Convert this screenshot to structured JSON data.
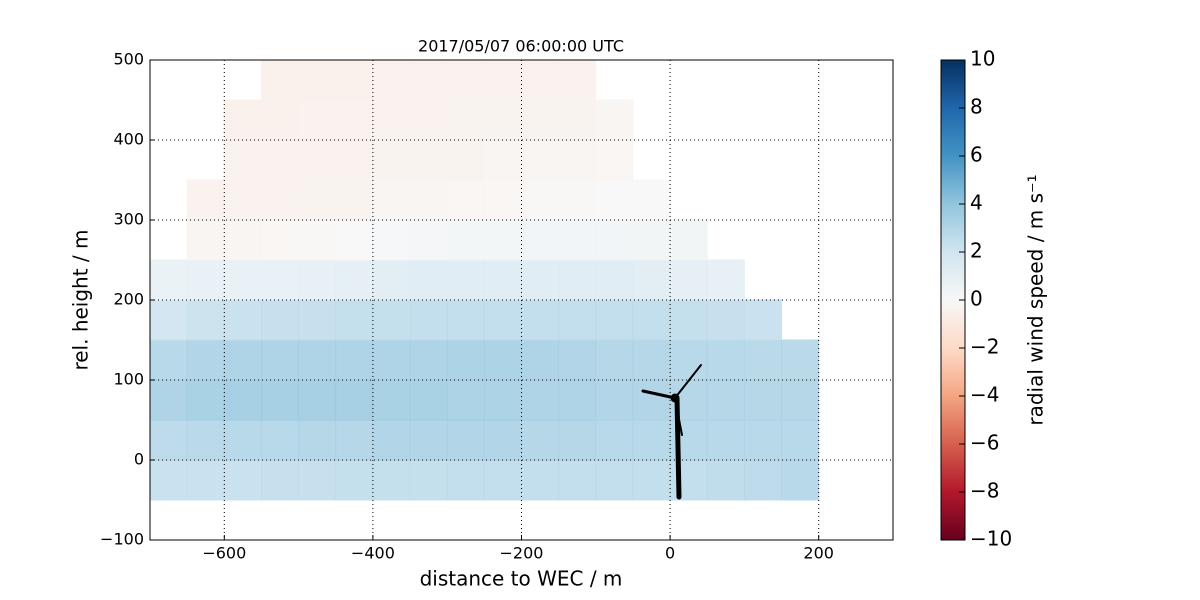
{
  "chart_data": {
    "type": "heatmap",
    "title": "2017/05/07 06:00:00 UTC",
    "xlabel": "distance to WEC / m",
    "ylabel": "rel. height / m",
    "xlim": [
      -700,
      300
    ],
    "ylim": [
      -100,
      500
    ],
    "xticks": [
      {
        "value": -600,
        "label": "−600"
      },
      {
        "value": -400,
        "label": "−400"
      },
      {
        "value": -200,
        "label": "−200"
      },
      0,
      200
    ],
    "yticks": [
      {
        "value": -100,
        "label": "−100"
      },
      0,
      100,
      200,
      300,
      400,
      500
    ],
    "grid": true,
    "colormap": "RdBu",
    "colorbar": {
      "label": "radial wind speed / m s⁻¹",
      "lim": [
        -10,
        10
      ],
      "ticks": [
        {
          "value": -10,
          "label": "−10"
        },
        {
          "value": -8,
          "label": "−8"
        },
        {
          "value": -6,
          "label": "−6"
        },
        {
          "value": -4,
          "label": "−4"
        },
        {
          "value": -2,
          "label": "−2"
        },
        0,
        2,
        4,
        6,
        8,
        10
      ]
    },
    "x": [
      -675,
      -625,
      -575,
      -525,
      -475,
      -425,
      -375,
      -325,
      -275,
      -225,
      -175,
      -125,
      -75,
      -25,
      25,
      75,
      125,
      175,
      225
    ],
    "y": [
      -25,
      25,
      75,
      125,
      175,
      225,
      275,
      325,
      375,
      425,
      475
    ],
    "values": [
      [
        2.5,
        2.5,
        2.5,
        2.6,
        2.6,
        2.7,
        2.7,
        2.7,
        2.8,
        2.8,
        2.8,
        2.8,
        2.8,
        2.8,
        2.8,
        2.9,
        3,
        3.2,
        null
      ],
      [
        3,
        3.1,
        3.2,
        3.2,
        3.3,
        3.3,
        3.4,
        3.4,
        3.4,
        3.4,
        3.3,
        3.3,
        3.2,
        3.2,
        3.2,
        3.2,
        3.2,
        3.2,
        null
      ],
      [
        3.5,
        3.7,
        3.8,
        3.8,
        3.8,
        3.8,
        3.7,
        3.7,
        3.6,
        3.6,
        3.5,
        3.5,
        3.4,
        3.4,
        3.3,
        3.3,
        3.3,
        3.3,
        null
      ],
      [
        3.2,
        3.4,
        3.5,
        3.5,
        3.5,
        3.5,
        3.5,
        3.5,
        3.6,
        3.6,
        3.5,
        3.4,
        3.3,
        3.3,
        3.2,
        3.2,
        3.1,
        3.1,
        null
      ],
      [
        2.2,
        2.4,
        2.5,
        2.6,
        2.6,
        2.7,
        2.7,
        2.8,
        2.8,
        2.8,
        2.8,
        2.8,
        2.8,
        2.8,
        2.7,
        2.6,
        2.5,
        null,
        null
      ],
      [
        0.8,
        0.9,
        1,
        1,
        1.1,
        1.2,
        1.3,
        1.4,
        1.5,
        1.5,
        1.5,
        1.5,
        1.4,
        1.3,
        1.2,
        1.1,
        null,
        null,
        null
      ],
      [
        null,
        -0.3,
        -0.3,
        -0.2,
        -0.1,
        0,
        0.1,
        0.2,
        0.3,
        0.3,
        0.4,
        0.4,
        0.4,
        0.5,
        0.5,
        null,
        null,
        null,
        null
      ],
      [
        null,
        -0.5,
        -0.5,
        -0.5,
        -0.4,
        -0.4,
        -0.3,
        -0.3,
        -0.2,
        -0.2,
        -0.1,
        -0.1,
        0,
        0,
        null,
        null,
        null,
        null,
        null
      ],
      [
        null,
        null,
        -0.5,
        -0.5,
        -0.5,
        -0.5,
        -0.4,
        -0.4,
        -0.4,
        -0.3,
        -0.3,
        -0.3,
        -0.2,
        null,
        null,
        null,
        null,
        null,
        null
      ],
      [
        null,
        null,
        -0.6,
        -0.6,
        -0.5,
        -0.5,
        -0.5,
        -0.5,
        -0.4,
        -0.4,
        -0.4,
        -0.4,
        -0.3,
        null,
        null,
        null,
        null,
        null,
        null
      ],
      [
        null,
        null,
        null,
        -0.6,
        -0.6,
        -0.6,
        -0.5,
        -0.5,
        -0.5,
        -0.5,
        -0.5,
        -0.5,
        null,
        null,
        null,
        null,
        null,
        null,
        null
      ]
    ]
  }
}
